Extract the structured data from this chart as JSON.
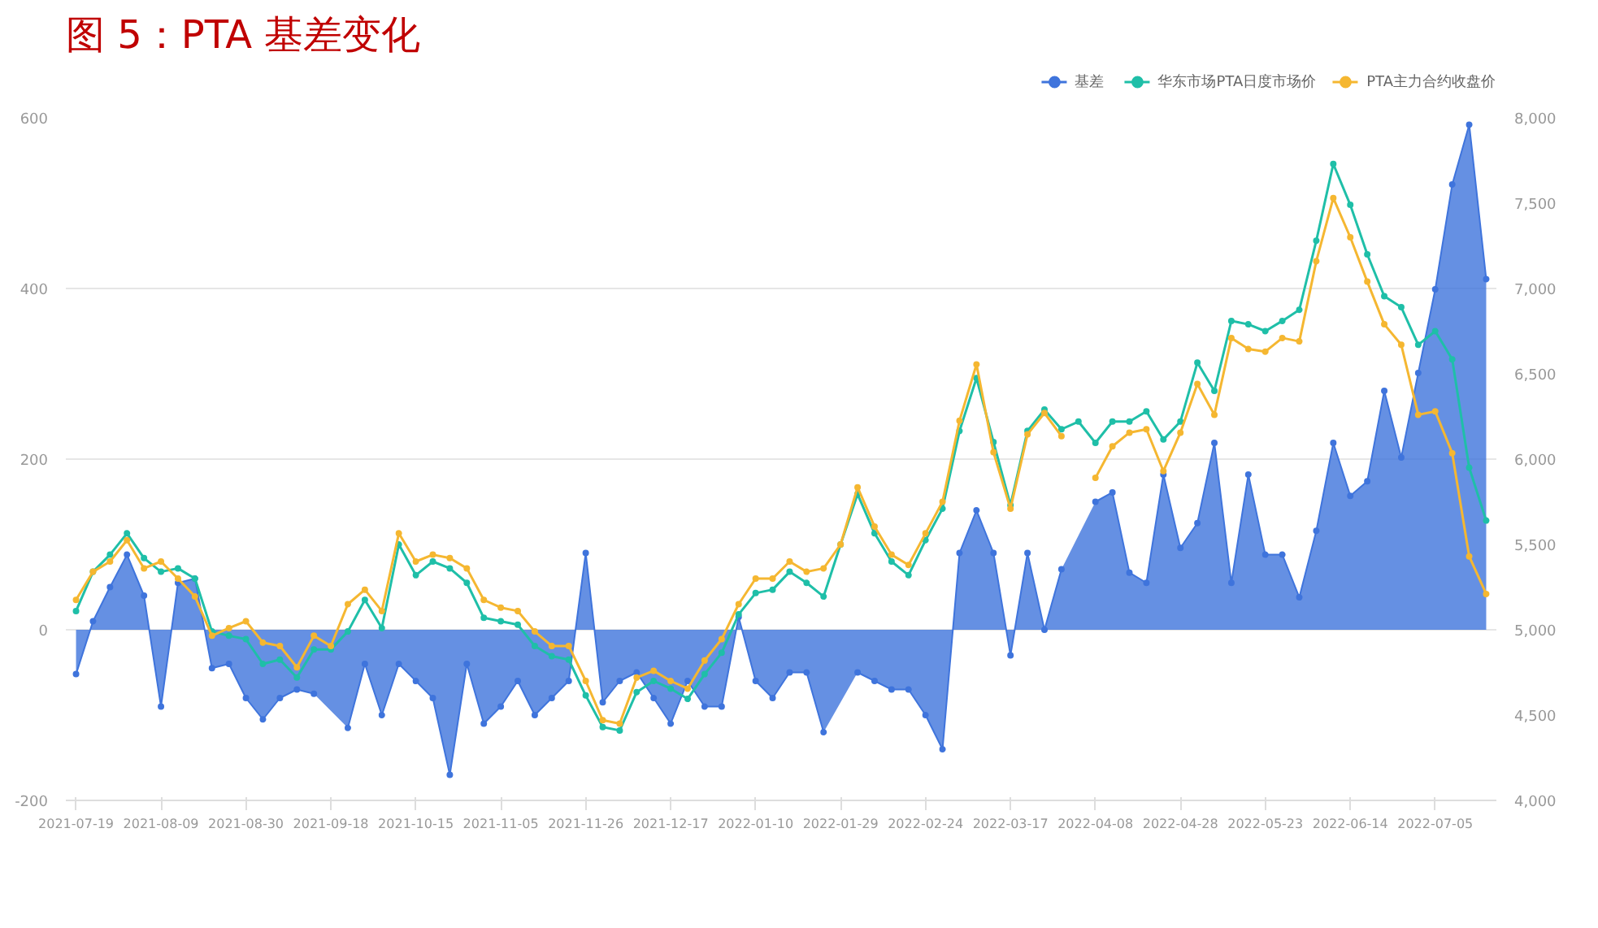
{
  "chart_data": {
    "type": "line",
    "title": "图 5：PTA 基差变化",
    "categories": [
      "2021-07-19",
      null,
      null,
      null,
      null,
      "2021-08-09",
      null,
      null,
      null,
      null,
      "2021-08-30",
      null,
      null,
      null,
      null,
      "2021-09-18",
      null,
      null,
      null,
      null,
      "2021-10-15",
      null,
      null,
      null,
      null,
      "2021-11-05",
      null,
      null,
      null,
      null,
      "2021-11-26",
      null,
      null,
      null,
      null,
      "2021-12-17",
      null,
      null,
      null,
      null,
      "2022-01-10",
      null,
      null,
      null,
      null,
      "2022-01-29",
      null,
      null,
      null,
      null,
      "2022-02-24",
      null,
      null,
      null,
      null,
      "2022-03-17",
      null,
      null,
      null,
      null,
      "2022-04-08",
      null,
      null,
      null,
      null,
      "2022-04-28",
      null,
      null,
      null,
      null,
      "2022-05-23",
      null,
      null,
      null,
      null,
      "2022-06-14",
      null,
      null,
      null,
      null,
      "2022-07-05",
      null,
      null,
      null
    ],
    "series": [
      {
        "name": "基差",
        "type": "area",
        "color": "#3f74dc",
        "values": [
          -52,
          10,
          50,
          88,
          40,
          -90,
          55,
          60,
          -45,
          -40,
          -80,
          -105,
          -80,
          -70,
          -75,
          null,
          -115,
          -40,
          -100,
          -40,
          -60,
          -80,
          -170,
          -40,
          -110,
          -90,
          -60,
          -100,
          -80,
          -60,
          90,
          -85,
          -60,
          -50,
          -80,
          -110,
          -60,
          -90,
          -90,
          15,
          -60,
          -80,
          -50,
          -50,
          -120,
          null,
          -50,
          -60,
          -70,
          -70,
          -100,
          -140,
          90,
          140,
          90,
          -30,
          90,
          0,
          71,
          null,
          150,
          161,
          67,
          55,
          182,
          96,
          125,
          219,
          55,
          182,
          88,
          88,
          38,
          116,
          219,
          157,
          174,
          280,
          202,
          301,
          399,
          522,
          592,
          411
        ]
      },
      {
        "name": "华东市场PTA日度市场价",
        "axis": "y2",
        "color": "#1fbfa8",
        "values": [
          5110,
          5340,
          5440,
          5565,
          5420,
          5340,
          5360,
          5300,
          4990,
          4965,
          4945,
          4800,
          4825,
          4720,
          4885,
          4885,
          4990,
          5175,
          5010,
          5500,
          5320,
          5400,
          5360,
          5275,
          5070,
          5050,
          5030,
          4905,
          4845,
          4825,
          4615,
          4430,
          4410,
          4635,
          4700,
          4655,
          4595,
          4740,
          4865,
          5090,
          5215,
          5235,
          5340,
          5275,
          5195,
          5500,
          5795,
          5565,
          5400,
          5320,
          5525,
          5710,
          6165,
          6475,
          6100,
          5730,
          6165,
          6290,
          6175,
          6220,
          6095,
          6220,
          6220,
          6280,
          6115,
          6220,
          6565,
          6400,
          6810,
          6790,
          6750,
          6810,
          6875,
          7280,
          7730,
          7490,
          7200,
          6955,
          6890,
          6670,
          6750,
          6585,
          5950,
          5640
        ]
      },
      {
        "name": "PTA主力合约收盘价",
        "axis": "y2",
        "color": "#f5b731",
        "values": [
          5175,
          5340,
          5400,
          5525,
          5360,
          5400,
          5300,
          5195,
          4965,
          5010,
          5050,
          4925,
          4905,
          4780,
          4965,
          4905,
          5150,
          5235,
          5110,
          5565,
          5400,
          5440,
          5420,
          5360,
          5175,
          5130,
          5110,
          4990,
          4905,
          4905,
          4700,
          4470,
          4450,
          4720,
          4760,
          4700,
          4655,
          4820,
          4945,
          5150,
          5300,
          5300,
          5400,
          5340,
          5360,
          5500,
          5835,
          5605,
          5440,
          5380,
          5565,
          5750,
          6225,
          6555,
          6040,
          5710,
          6145,
          6270,
          6135,
          null,
          5890,
          6075,
          6155,
          6175,
          5930,
          6155,
          6440,
          6260,
          6710,
          6645,
          6630,
          6710,
          6690,
          7160,
          7530,
          7300,
          7040,
          6790,
          6670,
          6260,
          6280,
          6035,
          5430,
          5210
        ]
      }
    ],
    "ylim": [
      -200,
      600
    ],
    "yticks": [
      -200,
      0,
      200,
      400,
      600
    ],
    "y2lim": [
      4000,
      8000
    ],
    "y2ticks": [
      {
        "value": 4000,
        "label": "4,000"
      },
      {
        "value": 4500,
        "label": "4,500"
      },
      {
        "value": 5000,
        "label": "5,000"
      },
      {
        "value": 5500,
        "label": "5,500"
      },
      {
        "value": 6000,
        "label": "6,000"
      },
      {
        "value": 6500,
        "label": "6,500"
      },
      {
        "value": 7000,
        "label": "7,000"
      },
      {
        "value": 7500,
        "label": "7,500"
      },
      {
        "value": 8000,
        "label": "8,000"
      }
    ],
    "grid": "y",
    "legend": "top right",
    "marker": "circle"
  }
}
